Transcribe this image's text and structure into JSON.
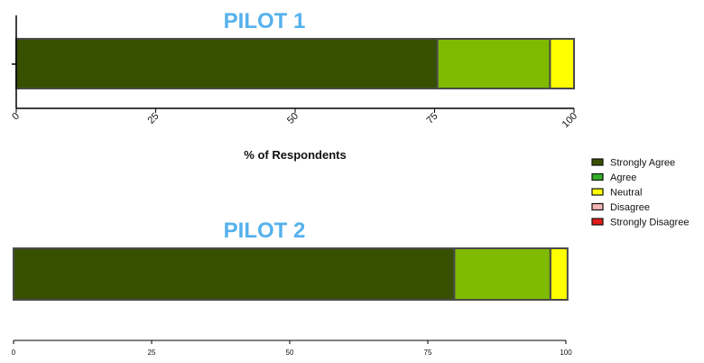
{
  "chart_data": [
    {
      "type": "bar",
      "orientation": "horizontal",
      "stacked": true,
      "title": "PILOT 1",
      "xlabel": "% of Respondents",
      "xlim": [
        0,
        100
      ],
      "xticks": [
        "0",
        "25",
        "50",
        "75",
        "100"
      ],
      "series": [
        {
          "name": "Strongly Agree",
          "values": [
            75.5
          ]
        },
        {
          "name": "Agree",
          "values": [
            20.2
          ]
        },
        {
          "name": "Neutral",
          "values": [
            4.3
          ]
        },
        {
          "name": "Disagree",
          "values": [
            0
          ]
        },
        {
          "name": "Strongly Disagree",
          "values": [
            0
          ]
        }
      ]
    },
    {
      "type": "bar",
      "orientation": "horizontal",
      "stacked": true,
      "title": "PILOT 2",
      "xlabel": "",
      "xlim": [
        0,
        100
      ],
      "xticks": [
        "0",
        "25",
        "50",
        "75",
        "100"
      ],
      "series": [
        {
          "name": "Strongly Agree",
          "values": [
            79.8
          ]
        },
        {
          "name": "Agree",
          "values": [
            17.4
          ]
        },
        {
          "name": "Neutral",
          "values": [
            3.1
          ]
        },
        {
          "name": "Disagree",
          "values": [
            0
          ]
        },
        {
          "name": "Strongly Disagree",
          "values": [
            0
          ]
        }
      ]
    }
  ],
  "legend": {
    "items": [
      {
        "label": "Strongly Agree",
        "color": "#375000"
      },
      {
        "label": "Agree",
        "color": "#31b02a"
      },
      {
        "label": "Neutral",
        "color": "#ffff00"
      },
      {
        "label": "Disagree",
        "color": "#f4b6b6"
      },
      {
        "label": "Strongly Disagree",
        "color": "#e21a1a"
      }
    ]
  },
  "colors": {
    "Strongly Agree": "#375000",
    "Agree": "#7fba00",
    "Neutral": "#ffff00",
    "Disagree": "#f4b6b6",
    "Strongly Disagree": "#e21a1a",
    "title": "#55b1ec"
  }
}
